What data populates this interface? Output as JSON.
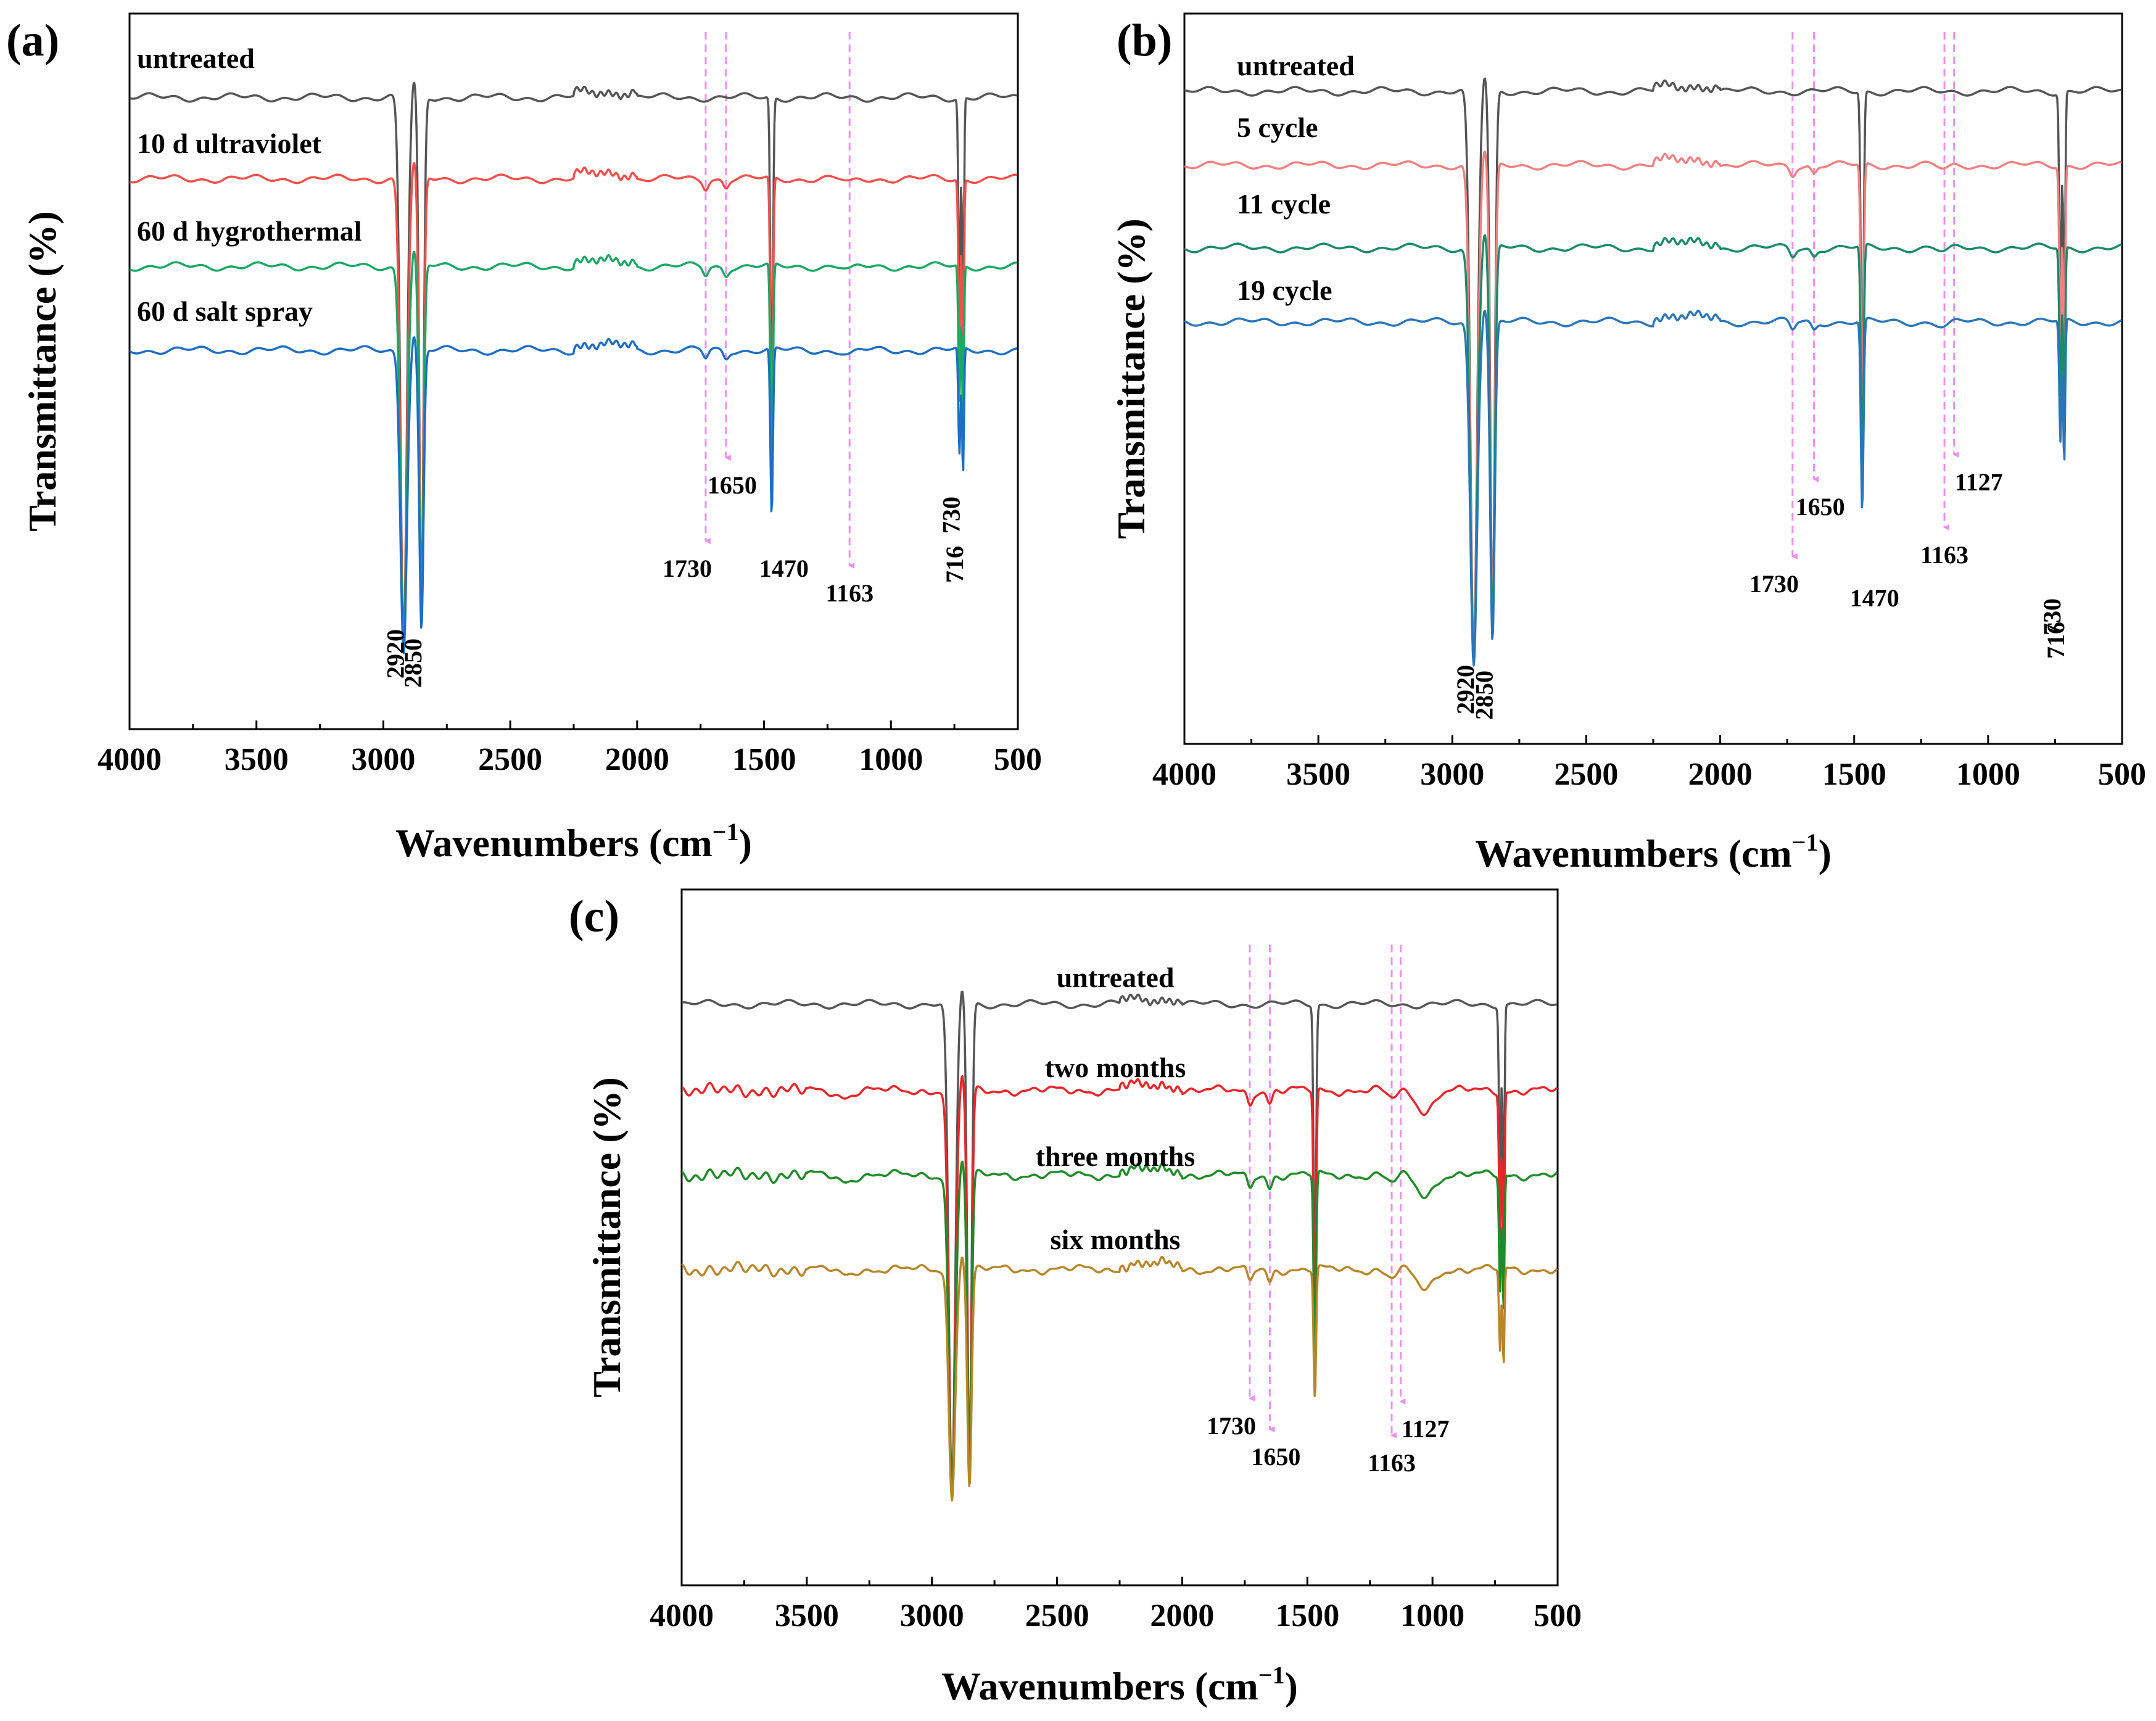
{
  "figure": {
    "panels": [
      {
        "label": "(a)",
        "xlabel": "Wavenumbers (cm",
        "xlabel_sup": "−1",
        "xlabel_end": ")",
        "ylabel": "Transmittance (%)",
        "xticks": [
          "4000",
          "3500",
          "3000",
          "2500",
          "2000",
          "1500",
          "1000",
          "500"
        ],
        "legend_size": "small",
        "dips_b": true,
        "series": [
          {
            "name": "untreated",
            "color": "#555555"
          },
          {
            "name": "10 d ultraviolet",
            "color": "#f0504a"
          },
          {
            "name": "60 d hygrothermal",
            "color": "#1aa865"
          },
          {
            "name": "60 d salt spray",
            "color": "#1d6ec4"
          }
        ],
        "annotations": [
          {
            "wn": 1730,
            "text": "1730",
            "arrow": true
          },
          {
            "wn": 1650,
            "text": "1650",
            "arrow": true
          },
          {
            "wn": 1163,
            "text": "1163",
            "arrow": true
          },
          {
            "wn": 1470,
            "text": "1470",
            "arrow": false
          },
          {
            "wn": 2920,
            "text": "2920",
            "arrow": false,
            "rotate": true
          },
          {
            "wn": 2850,
            "text": "2850",
            "arrow": false,
            "rotate": true
          },
          {
            "wn": 730,
            "text": "730",
            "arrow": false,
            "rotate": true
          },
          {
            "wn": 716,
            "text": "716",
            "arrow": false,
            "rotate": true
          }
        ]
      },
      {
        "label": "(b)",
        "xlabel": "Wavenumbers (cm",
        "xlabel_sup": "−1",
        "xlabel_end": ")",
        "ylabel": "Transmittance (%)",
        "xticks": [
          "4000",
          "3500",
          "3000",
          "2500",
          "2000",
          "1500",
          "1000",
          "500"
        ],
        "legend_size": "large",
        "dips_b": true,
        "series": [
          {
            "name": "untreated",
            "color": "#555555"
          },
          {
            "name": "5 cycle",
            "color": "#f08080"
          },
          {
            "name": "11 cycle",
            "color": "#1a8a6a"
          },
          {
            "name": "19 cycle",
            "color": "#2a76b8"
          }
        ],
        "annotations": [
          {
            "wn": 1730,
            "text": "1730",
            "arrow": true
          },
          {
            "wn": 1650,
            "text": "1650",
            "arrow": true
          },
          {
            "wn": 1163,
            "text": "1163",
            "arrow": true
          },
          {
            "wn": 1127,
            "text": "1127",
            "arrow": true
          },
          {
            "wn": 1470,
            "text": "1470",
            "arrow": false
          },
          {
            "wn": 2920,
            "text": "2920",
            "arrow": false,
            "rotate": true
          },
          {
            "wn": 2850,
            "text": "2850",
            "arrow": false,
            "rotate": true
          },
          {
            "wn": 730,
            "text": "730",
            "arrow": false,
            "rotate": true
          },
          {
            "wn": 716,
            "text": "716",
            "arrow": false,
            "rotate": true
          }
        ]
      },
      {
        "label": "(c)",
        "xlabel": "Wavenumbers (cm",
        "xlabel_sup": "−1",
        "xlabel_end": ")",
        "ylabel": "Transmittance (%)",
        "xticks": [
          "4000",
          "3500",
          "3000",
          "2500",
          "2000",
          "1500",
          "1000",
          "500"
        ],
        "legend_size": "small",
        "dips_b": false,
        "series": [
          {
            "name": "untreated",
            "color": "#555555"
          },
          {
            "name": "two months",
            "color": "#e8262a"
          },
          {
            "name": "three months",
            "color": "#1e8c26"
          },
          {
            "name": "six months",
            "color": "#b8862a"
          }
        ],
        "annotations": [
          {
            "wn": 1730,
            "text": "1730",
            "arrow": true
          },
          {
            "wn": 1650,
            "text": "1650",
            "arrow": true
          },
          {
            "wn": 1163,
            "text": "1163",
            "arrow": true
          },
          {
            "wn": 1127,
            "text": "1127",
            "arrow": true
          }
        ]
      }
    ]
  },
  "chart_data": [
    {
      "type": "line",
      "title": "(a)",
      "xlabel": "Wavenumbers (cm−1)",
      "ylabel": "Transmittance (%)",
      "xlim": [
        4000,
        500
      ],
      "x_reversed": true,
      "series": [
        {
          "name": "untreated",
          "peaks_cm-1": [
            2920,
            2850,
            1470,
            730,
            716
          ]
        },
        {
          "name": "10 d ultraviolet",
          "peaks_cm-1": [
            2920,
            2850,
            1730,
            1650,
            1470,
            1163,
            730,
            716
          ]
        },
        {
          "name": "60 d hygrothermal",
          "peaks_cm-1": [
            2920,
            2850,
            1730,
            1650,
            1470,
            1163,
            730,
            716
          ]
        },
        {
          "name": "60 d salt spray",
          "peaks_cm-1": [
            2920,
            2850,
            1730,
            1650,
            1470,
            1163,
            730,
            716
          ]
        }
      ],
      "annotations": [
        "1730",
        "1650",
        "1163",
        "1470",
        "2920",
        "2850",
        "730",
        "716"
      ]
    },
    {
      "type": "line",
      "title": "(b)",
      "xlabel": "Wavenumbers (cm−1)",
      "ylabel": "Transmittance (%)",
      "xlim": [
        4000,
        500
      ],
      "x_reversed": true,
      "series": [
        {
          "name": "untreated",
          "peaks_cm-1": [
            2920,
            2850,
            1470,
            730,
            716
          ]
        },
        {
          "name": "5 cycle",
          "peaks_cm-1": [
            2920,
            2850,
            1730,
            1650,
            1470,
            1163,
            1127,
            730,
            716
          ]
        },
        {
          "name": "11 cycle",
          "peaks_cm-1": [
            2920,
            2850,
            1730,
            1650,
            1470,
            1163,
            1127,
            730,
            716
          ]
        },
        {
          "name": "19 cycle",
          "peaks_cm-1": [
            2920,
            2850,
            1730,
            1650,
            1470,
            1163,
            1127,
            730,
            716
          ]
        }
      ],
      "annotations": [
        "1730",
        "1650",
        "1163",
        "1127",
        "1470",
        "2920",
        "2850",
        "730",
        "716"
      ]
    },
    {
      "type": "line",
      "title": "(c)",
      "xlabel": "Wavenumbers (cm−1)",
      "ylabel": "Transmittance (%)",
      "xlim": [
        4000,
        500
      ],
      "x_reversed": true,
      "series": [
        {
          "name": "untreated",
          "peaks_cm-1": [
            2920,
            2850,
            1470,
            730,
            716
          ]
        },
        {
          "name": "two months",
          "peaks_cm-1": [
            2920,
            2850,
            1730,
            1650,
            1470,
            1163,
            1127,
            730,
            716
          ]
        },
        {
          "name": "three months",
          "peaks_cm-1": [
            2920,
            2850,
            1730,
            1650,
            1470,
            1163,
            1127,
            730,
            716
          ]
        },
        {
          "name": "six months",
          "peaks_cm-1": [
            2920,
            2850,
            1730,
            1650,
            1470,
            1163,
            1127,
            730,
            716
          ]
        }
      ],
      "annotations": [
        "1730",
        "1650",
        "1163",
        "1127"
      ]
    }
  ]
}
